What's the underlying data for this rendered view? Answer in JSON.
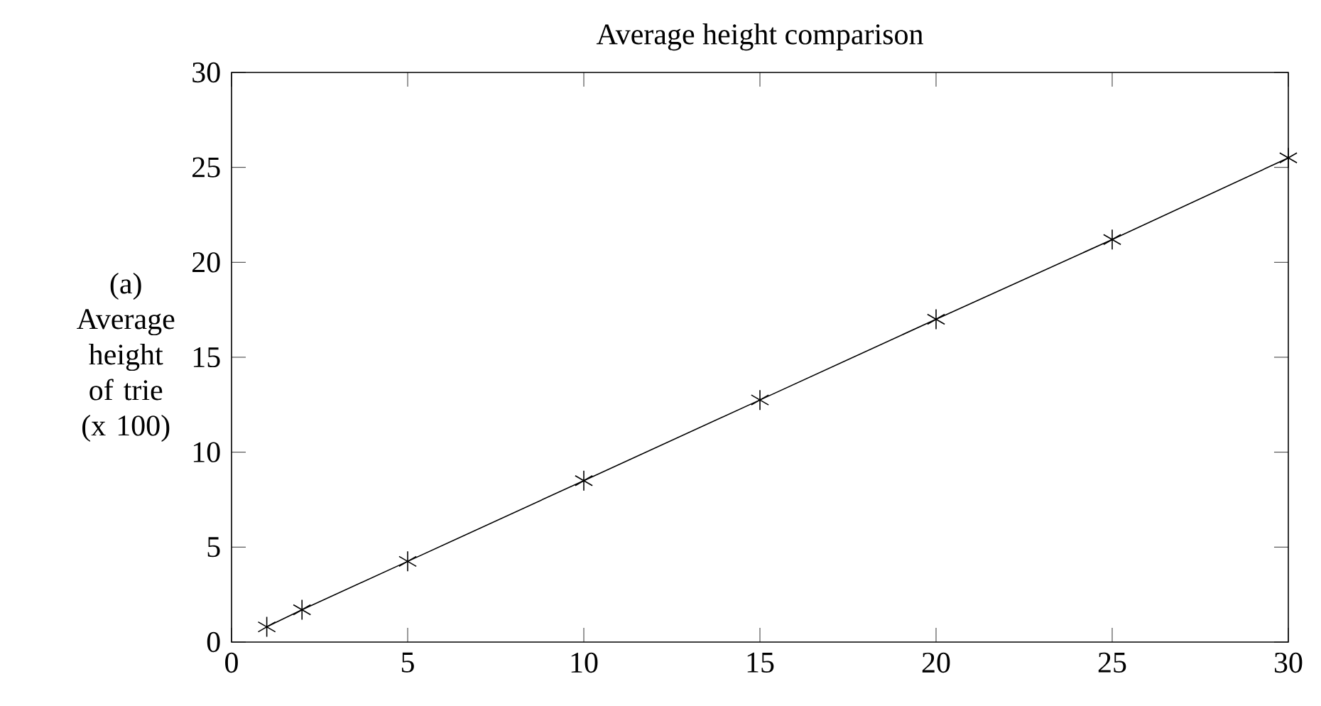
{
  "chart_data": {
    "type": "line",
    "title": "Average height comparison",
    "ylabel": "(a) Average height of trie (x 100)",
    "x": [
      1,
      2,
      5,
      10,
      15,
      20,
      25,
      30
    ],
    "values": [
      0.8,
      1.7,
      4.25,
      8.5,
      12.75,
      17.0,
      21.2,
      25.5
    ],
    "color": "#000000",
    "marker": "cross",
    "line_style": "solid",
    "xlim": [
      0,
      30
    ],
    "ylim": [
      0,
      30
    ],
    "xticks": [
      0,
      5,
      10,
      15,
      20,
      25,
      30
    ],
    "yticks": [
      0,
      5,
      10,
      15,
      20,
      25,
      30
    ]
  }
}
